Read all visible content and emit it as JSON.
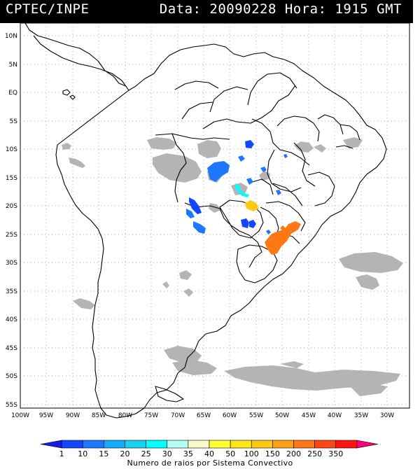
{
  "header": {
    "source": "CPTEC/INPE",
    "datetime": "Data: 20090228 Hora: 1915 GMT"
  },
  "map": {
    "lat_labels": [
      "10N",
      "5N",
      "EQ",
      "5S",
      "10S",
      "15S",
      "20S",
      "25S",
      "30S",
      "35S",
      "40S",
      "45S",
      "50S",
      "55S"
    ],
    "lon_labels": [
      "100W",
      "95W",
      "90W",
      "85W",
      "80W",
      "75W",
      "70W",
      "65W",
      "60W",
      "55W",
      "50W",
      "45W",
      "40W",
      "35W",
      "30W"
    ],
    "grid": "dotted"
  },
  "legend": {
    "ticks": [
      "1",
      "10",
      "15",
      "20",
      "25",
      "30",
      "35",
      "40",
      "50",
      "100",
      "150",
      "200",
      "250",
      "350"
    ],
    "caption": "Numero de raios por Sistema Convectivo",
    "colors": [
      "#1a1ae6",
      "#1446ff",
      "#1e78ff",
      "#14aaff",
      "#14d2f0",
      "#00ffff",
      "#b4fff0",
      "#fafac8",
      "#ffff32",
      "#ffe614",
      "#ffc814",
      "#ffa014",
      "#ff7814",
      "#ff4614",
      "#ff1414",
      "#ff0078"
    ]
  }
}
